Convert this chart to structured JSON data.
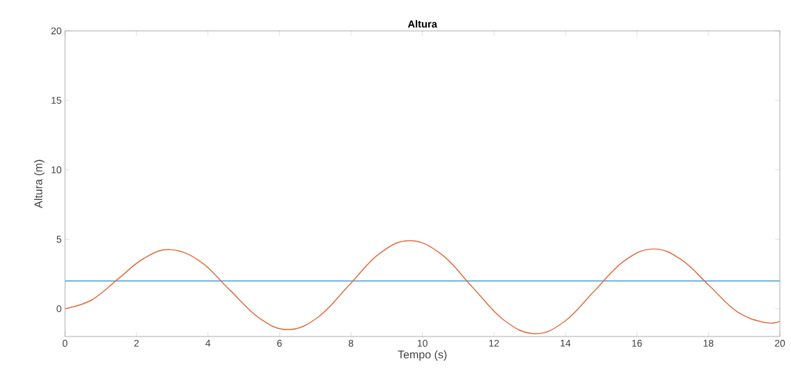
{
  "chart_data": {
    "type": "line",
    "title": "Altura",
    "xlabel": "Tempo (s)",
    "ylabel": "Altura (m)",
    "xlim": [
      0,
      20
    ],
    "ylim": [
      -2,
      20
    ],
    "xticks": [
      0,
      2,
      4,
      6,
      8,
      10,
      12,
      14,
      16,
      18,
      20
    ],
    "yticks": [
      0,
      5,
      10,
      15,
      20
    ],
    "series": [
      {
        "color": "#4d9fd0",
        "x": [
          0,
          20
        ],
        "values": [
          2,
          2
        ]
      },
      {
        "color": "#e06c3c",
        "x": [
          0,
          0.74,
          1.48,
          2.21,
          2.95,
          3.78,
          4.6,
          5.43,
          6.25,
          7.1,
          7.95,
          8.8,
          9.65,
          10.53,
          11.4,
          12.28,
          13.15,
          13.98,
          14.8,
          15.63,
          16.45,
          17.24,
          18.03,
          18.81,
          19.6,
          20
        ],
        "values": [
          0,
          0.62,
          2.13,
          3.63,
          4.25,
          3.41,
          1.38,
          -0.66,
          -1.5,
          -0.57,
          1.7,
          3.97,
          4.9,
          3.92,
          1.55,
          -0.82,
          -1.8,
          -0.91,
          1.25,
          3.41,
          4.3,
          3.53,
          1.65,
          -0.23,
          -1.0,
          -0.9
        ]
      }
    ]
  }
}
